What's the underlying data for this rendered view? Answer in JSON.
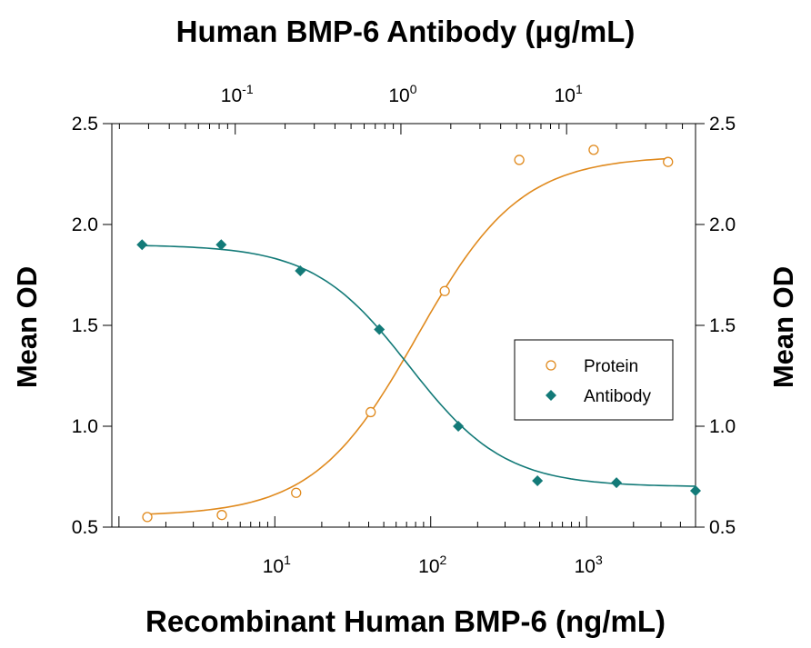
{
  "chart_data": {
    "type": "scatter",
    "title": "Human BMP-6 Antibody (μg/mL)",
    "xlabel": "Recombinant Human BMP-6 (ng/mL)",
    "ylabel": "Mean OD",
    "ylabel_right": "Mean OD",
    "y_scale": "linear",
    "ylim": [
      0.5,
      2.5
    ],
    "y_ticks": [
      "0.5",
      "1.0",
      "1.5",
      "2.0",
      "2.5"
    ],
    "x_bottom": {
      "label": "Recombinant Human BMP-6 (ng/mL)",
      "scale": "log",
      "range": [
        0.9,
        5000
      ],
      "tick_labels": [
        {
          "base": "10",
          "exp": "1",
          "value": 10
        },
        {
          "base": "10",
          "exp": "2",
          "value": 100
        },
        {
          "base": "10",
          "exp": "3",
          "value": 1000
        }
      ]
    },
    "x_top": {
      "label": "Human BMP-6 Antibody (μg/mL)",
      "scale": "log",
      "range": [
        0.018,
        60
      ],
      "tick_labels": [
        {
          "base": "10",
          "exp": "-1",
          "value": 0.1
        },
        {
          "base": "10",
          "exp": "0",
          "value": 1
        },
        {
          "base": "10",
          "exp": "1",
          "value": 10
        }
      ]
    },
    "legend": {
      "position": "center-right",
      "entries": [
        "Protein",
        "Antibody"
      ]
    },
    "grid": false,
    "series": [
      {
        "name": "Protein",
        "axis": "bottom",
        "marker": "open-circle",
        "color": "#e08a1e",
        "x": [
          1.52,
          4.57,
          13.7,
          41.2,
          123,
          370,
          1110,
          3330
        ],
        "y": [
          0.55,
          0.56,
          0.67,
          1.07,
          1.67,
          2.32,
          2.37,
          2.31
        ]
      },
      {
        "name": "Antibody",
        "axis": "top",
        "marker": "filled-diamond",
        "color": "#137a78",
        "x": [
          0.0274,
          0.0823,
          0.247,
          0.741,
          2.22,
          6.67,
          20,
          60
        ],
        "y": [
          1.9,
          1.9,
          1.77,
          1.48,
          1.0,
          0.73,
          0.72,
          0.68
        ]
      }
    ]
  }
}
